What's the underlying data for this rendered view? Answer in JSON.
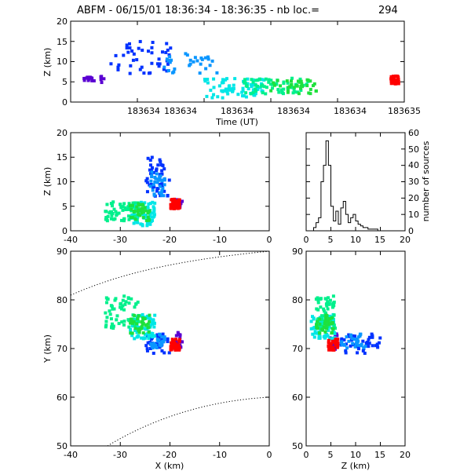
{
  "title": {
    "main": "ABFM - 06/15/01 18:36:34 - 18:36:35 - nb loc.=",
    "count": "294"
  },
  "chart_data": [
    {
      "id": "time_height",
      "type": "scatter",
      "xlabel": "Time (UT)",
      "ylabel": "Z (km)",
      "xlim": [
        183634.0,
        183635.0
      ],
      "ylim": [
        0,
        20
      ],
      "x_tick_labels": [
        "183634",
        "183634",
        "183634",
        "183634",
        "183634",
        "183635"
      ],
      "y_tick_labels": [
        "0",
        "5",
        "10",
        "15",
        "20"
      ]
    },
    {
      "id": "x_z",
      "type": "scatter",
      "xlabel": "",
      "ylabel": "Z (km)",
      "xlim": [
        -40,
        0
      ],
      "ylim": [
        0,
        20
      ],
      "x_tick_labels": [
        "-40",
        "-30",
        "-20",
        "-10",
        "0"
      ],
      "y_tick_labels": [
        "0",
        "5",
        "10",
        "15",
        "20"
      ]
    },
    {
      "id": "altitude_histogram",
      "type": "line",
      "xlabel": "",
      "ylabel": "number of sources",
      "xlim": [
        0,
        20
      ],
      "ylim": [
        0,
        60
      ],
      "x_tick_labels": [
        "0",
        "5",
        "10",
        "15",
        "20"
      ],
      "y_tick_labels": [
        "0",
        "10",
        "20",
        "30",
        "40",
        "50",
        "60"
      ],
      "x": [
        1.0,
        1.5,
        2.0,
        2.5,
        3.0,
        3.5,
        4.0,
        4.5,
        5.0,
        5.5,
        6.0,
        6.5,
        7.0,
        7.5,
        8.0,
        8.5,
        9.0,
        9.5,
        10.0,
        10.5,
        11.0,
        11.5,
        12.0,
        12.5,
        13.0,
        13.5,
        14.0,
        14.5,
        15.0
      ],
      "y": [
        0,
        2,
        5,
        8,
        30,
        40,
        55,
        40,
        15,
        6,
        12,
        4,
        14,
        18,
        10,
        5,
        8,
        10,
        6,
        4,
        3,
        2,
        2,
        1,
        1,
        1,
        1,
        0,
        0
      ]
    },
    {
      "id": "plan_view",
      "type": "scatter",
      "xlabel": "X (km)",
      "ylabel": "Y (km)",
      "xlim": [
        -40,
        0
      ],
      "ylim": [
        50,
        90
      ],
      "x_tick_labels": [
        "-40",
        "-30",
        "-20",
        "-10",
        "0"
      ],
      "y_tick_labels": [
        "50",
        "60",
        "70",
        "80",
        "90"
      ]
    },
    {
      "id": "z_y",
      "type": "scatter",
      "xlabel": "Z (km)",
      "ylabel": "",
      "xlim": [
        0,
        20
      ],
      "ylim": [
        50,
        90
      ],
      "x_tick_labels": [
        "0",
        "5",
        "10",
        "15",
        "20"
      ],
      "y_tick_labels": [
        "50",
        "60",
        "70",
        "80",
        "90"
      ]
    }
  ],
  "sources": {
    "color_scale": [
      "#5a00d2",
      "#0032ff",
      "#0a96ff",
      "#00e6e6",
      "#00f08c",
      "#1ee13c",
      "#ff0000"
    ],
    "groups": [
      {
        "t": [
          0.04,
          0.1
        ],
        "x": [
          -19,
          -17.5
        ],
        "y": [
          69.5,
          73.5
        ],
        "z": [
          4.5,
          6.5
        ],
        "n": 18,
        "color": 0
      },
      {
        "t": [
          0.12,
          0.3
        ],
        "x": [
          -25,
          -20
        ],
        "y": [
          69,
          73
        ],
        "z": [
          7,
          15
        ],
        "n": 45,
        "color": 1
      },
      {
        "t": [
          0.28,
          0.44
        ],
        "x": [
          -24,
          -21
        ],
        "y": [
          70,
          73
        ],
        "z": [
          7,
          12
        ],
        "n": 30,
        "color": 2
      },
      {
        "t": [
          0.4,
          0.58
        ],
        "x": [
          -28,
          -23
        ],
        "y": [
          72,
          77
        ],
        "z": [
          1,
          6
        ],
        "n": 70,
        "color": 3
      },
      {
        "t": [
          0.52,
          0.72
        ],
        "x": [
          -33,
          -26
        ],
        "y": [
          74,
          81
        ],
        "z": [
          2,
          6
        ],
        "n": 60,
        "color": 4
      },
      {
        "t": [
          0.6,
          0.74
        ],
        "x": [
          -28,
          -24
        ],
        "y": [
          73,
          77
        ],
        "z": [
          2,
          5.5
        ],
        "n": 35,
        "color": 5
      },
      {
        "t": [
          0.96,
          0.985
        ],
        "x": [
          -20,
          -18
        ],
        "y": [
          69.5,
          72
        ],
        "z": [
          4.5,
          6.5
        ],
        "n": 36,
        "color": 6
      }
    ]
  }
}
